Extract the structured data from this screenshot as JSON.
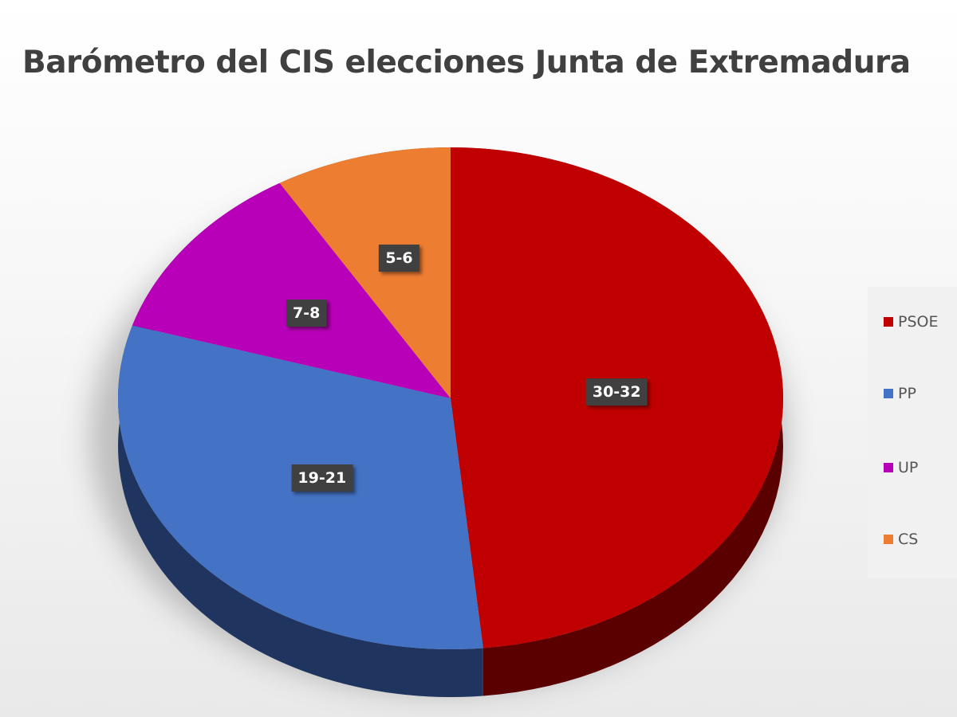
{
  "chart_data": {
    "type": "pie",
    "title": "Barómetro del CIS elecciones Junta de Extremadura",
    "style": "3d",
    "legend_position": "right",
    "series": [
      {
        "name": "PSOE",
        "label": "30-32",
        "value": 31,
        "color": "#c00000",
        "side_color": "#5a0000"
      },
      {
        "name": "PP",
        "label": "19-21",
        "value": 20,
        "color": "#4472c4",
        "side_color": "#1f3560"
      },
      {
        "name": "UP",
        "label": "7-8",
        "value": 7.5,
        "color": "#b700b7",
        "side_color": "#5a005a"
      },
      {
        "name": "CS",
        "label": "5-6",
        "value": 5.5,
        "color": "#ed7d31",
        "side_color": "#7a3d10"
      }
    ]
  }
}
